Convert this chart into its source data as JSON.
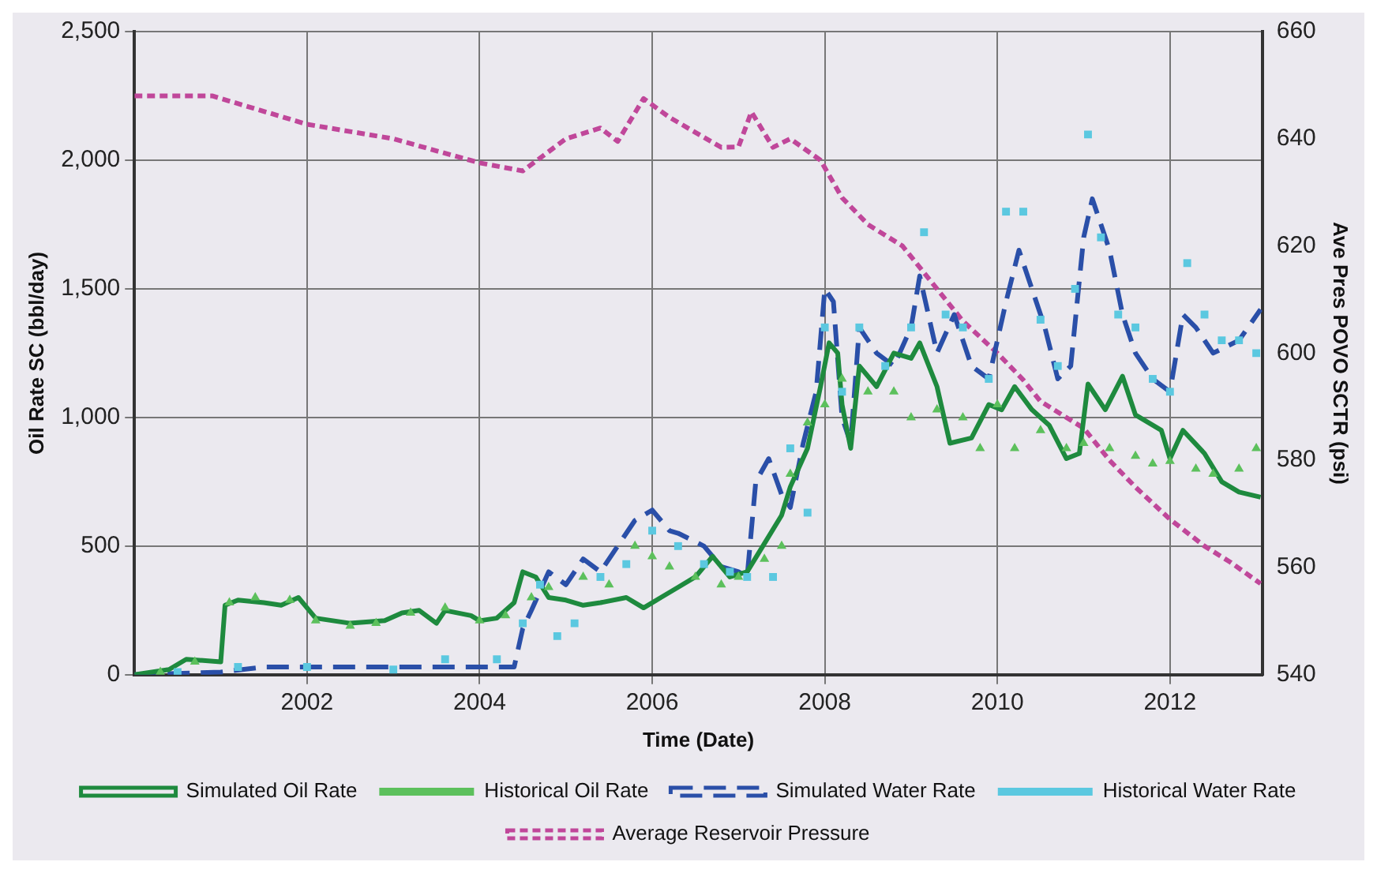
{
  "chart_data": {
    "type": "line",
    "xlabel": "Time (Date)",
    "ylabel": "Oil Rate SC (bbl/day)",
    "y2label": "Ave Pres POVO SCTR (psi)",
    "xlim": [
      2000,
      2013.07
    ],
    "xticks": [
      2002,
      2004,
      2006,
      2008,
      2010,
      2012
    ],
    "ylim": [
      0,
      2500
    ],
    "yticks": [
      0,
      500,
      {
        "value": 1000,
        "label": "1,000"
      },
      {
        "value": 1500,
        "label": "1,500"
      },
      {
        "value": 2000,
        "label": "2,000"
      },
      {
        "value": 2500,
        "label": "2,500"
      }
    ],
    "y2lim": [
      540,
      660
    ],
    "y2ticks": [
      540,
      560,
      580,
      600,
      620,
      640,
      660
    ],
    "grid": true,
    "legend": "bottom",
    "series": [
      {
        "name": "Simulated Oil Rate",
        "line_style": "solid",
        "marker": "none",
        "color": "#1e8a3e",
        "x": [
          2000,
          2000.4,
          2000.6,
          2001,
          2001.05,
          2001.2,
          2001.5,
          2001.7,
          2001.9,
          2002.1,
          2002.5,
          2002.9,
          2003.1,
          2003.3,
          2003.5,
          2003.6,
          2003.9,
          2004,
          2004.2,
          2004.4,
          2004.5,
          2004.65,
          2004.8,
          2005,
          2005.2,
          2005.4,
          2005.7,
          2005.9,
          2006.1,
          2006.3,
          2006.5,
          2006.7,
          2006.9,
          2007.1,
          2007.3,
          2007.5,
          2007.6,
          2007.8,
          2007.95,
          2008.05,
          2008.15,
          2008.2,
          2008.3,
          2008.4,
          2008.6,
          2008.8,
          2009,
          2009.1,
          2009.3,
          2009.45,
          2009.7,
          2009.9,
          2010.05,
          2010.2,
          2010.4,
          2010.6,
          2010.8,
          2010.95,
          2011.05,
          2011.25,
          2011.45,
          2011.6,
          2011.9,
          2012,
          2012.15,
          2012.4,
          2012.6,
          2012.8,
          2013.05
        ],
        "values": [
          0,
          20,
          60,
          50,
          270,
          290,
          280,
          270,
          300,
          220,
          200,
          210,
          240,
          250,
          200,
          250,
          230,
          210,
          220,
          280,
          400,
          380,
          300,
          290,
          270,
          280,
          300,
          260,
          300,
          340,
          380,
          460,
          380,
          400,
          510,
          620,
          730,
          880,
          1120,
          1290,
          1250,
          1050,
          880,
          1200,
          1120,
          1250,
          1230,
          1290,
          1120,
          900,
          920,
          1050,
          1030,
          1120,
          1030,
          970,
          840,
          860,
          1130,
          1030,
          1160,
          1010,
          950,
          840,
          950,
          860,
          750,
          710,
          690
        ]
      },
      {
        "name": "Historical Oil Rate",
        "type": "scatter",
        "marker": "triangle",
        "color": "#5cc05c",
        "x": [
          2000.3,
          2000.7,
          2001.1,
          2001.4,
          2001.8,
          2002.1,
          2002.5,
          2002.8,
          2003.2,
          2003.6,
          2004,
          2004.3,
          2004.6,
          2004.8,
          2005.2,
          2005.5,
          2005.8,
          2006,
          2006.2,
          2006.5,
          2006.8,
          2007,
          2007.3,
          2007.5,
          2007.6,
          2007.8,
          2008,
          2008.2,
          2008.5,
          2008.8,
          2009,
          2009.3,
          2009.6,
          2009.8,
          2010,
          2010.2,
          2010.5,
          2010.8,
          2011,
          2011.3,
          2011.6,
          2011.8,
          2012,
          2012.3,
          2012.5,
          2012.8,
          2013
        ],
        "values": [
          10,
          50,
          280,
          300,
          290,
          210,
          190,
          200,
          240,
          260,
          210,
          230,
          300,
          340,
          380,
          350,
          500,
          460,
          420,
          380,
          350,
          380,
          450,
          500,
          780,
          980,
          1050,
          1150,
          1100,
          1100,
          1000,
          1030,
          1000,
          880,
          1050,
          880,
          950,
          880,
          900,
          880,
          850,
          820,
          830,
          800,
          780,
          800,
          880
        ]
      },
      {
        "name": "Simulated Water Rate",
        "line_style": "dashed",
        "marker": "none",
        "color": "#2a4fa8",
        "x": [
          2000,
          2001,
          2001.5,
          2002,
          2003,
          2004,
          2004.4,
          2004.5,
          2004.6,
          2004.8,
          2005,
          2005.2,
          2005.4,
          2005.6,
          2005.8,
          2006,
          2006.2,
          2006.3,
          2006.6,
          2006.8,
          2007,
          2007.1,
          2007.2,
          2007.35,
          2007.5,
          2007.6,
          2007.75,
          2007.9,
          2008,
          2008.1,
          2008.2,
          2008.3,
          2008.4,
          2008.6,
          2008.8,
          2009,
          2009.1,
          2009.3,
          2009.5,
          2009.7,
          2009.9,
          2010.1,
          2010.25,
          2010.4,
          2010.55,
          2010.7,
          2010.85,
          2011,
          2011.1,
          2011.3,
          2011.45,
          2011.6,
          2011.8,
          2012,
          2012.15,
          2012.3,
          2012.5,
          2012.8,
          2013.05
        ],
        "values": [
          0,
          10,
          30,
          30,
          30,
          30,
          30,
          180,
          250,
          400,
          350,
          450,
          400,
          500,
          600,
          640,
          560,
          550,
          500,
          420,
          400,
          380,
          750,
          840,
          700,
          650,
          900,
          1100,
          1500,
          1450,
          1000,
          900,
          1350,
          1250,
          1200,
          1350,
          1550,
          1250,
          1400,
          1200,
          1150,
          1450,
          1650,
          1500,
          1350,
          1150,
          1200,
          1700,
          1850,
          1650,
          1400,
          1250,
          1150,
          1100,
          1400,
          1350,
          1250,
          1300,
          1420
        ]
      },
      {
        "name": "Historical Water Rate",
        "type": "scatter",
        "marker": "square",
        "color": "#5bc8e0",
        "x": [
          2000.5,
          2001.2,
          2002,
          2003,
          2003.6,
          2004.2,
          2004.5,
          2004.7,
          2004.9,
          2005.1,
          2005.4,
          2005.7,
          2006,
          2006.3,
          2006.6,
          2006.9,
          2007.1,
          2007.4,
          2007.6,
          2007.8,
          2008,
          2008.2,
          2008.4,
          2008.7,
          2009,
          2009.15,
          2009.4,
          2009.6,
          2009.9,
          2010.1,
          2010.3,
          2010.5,
          2010.7,
          2010.9,
          2011.05,
          2011.2,
          2011.4,
          2011.6,
          2011.8,
          2012,
          2012.2,
          2012.4,
          2012.6,
          2012.8,
          2013
        ],
        "values": [
          10,
          30,
          30,
          20,
          60,
          60,
          200,
          350,
          150,
          200,
          380,
          430,
          560,
          500,
          430,
          400,
          380,
          380,
          880,
          630,
          1350,
          1100,
          1350,
          1200,
          1350,
          1720,
          1400,
          1350,
          1150,
          1800,
          1800,
          1380,
          1200,
          1500,
          2100,
          1700,
          1400,
          1350,
          1150,
          1100,
          1600,
          1400,
          1300,
          1300,
          1250
        ]
      },
      {
        "name": "Average Reservoir Pressure",
        "axis": "y2",
        "line_style": "dotted",
        "marker": "none",
        "color": "#c0479a",
        "x": [
          2000,
          2000.9,
          2002,
          2003,
          2004,
          2004.5,
          2005,
          2005.4,
          2005.6,
          2005.9,
          2006.2,
          2006.8,
          2007,
          2007.15,
          2007.4,
          2007.6,
          2007.95,
          2008.2,
          2008.5,
          2008.9,
          2009.2,
          2009.6,
          2010,
          2010.3,
          2010.5,
          2011,
          2011.3,
          2011.6,
          2012,
          2012.4,
          2012.7,
          2013.05
        ],
        "values": [
          648,
          648,
          642.7,
          640,
          635.5,
          634,
          640,
          642,
          639.5,
          647.5,
          644,
          638.4,
          638.5,
          645,
          638.4,
          640,
          636,
          629,
          624,
          620,
          614,
          606,
          600,
          595,
          591,
          586,
          580,
          575,
          569,
          564,
          561,
          557
        ]
      }
    ]
  }
}
